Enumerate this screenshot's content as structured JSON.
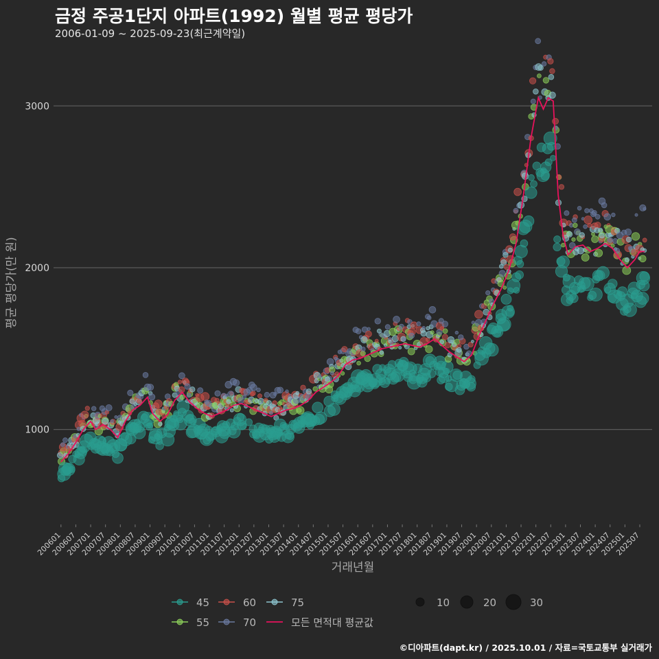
{
  "title": "금정 주공1단지 아파트(1992) 월별 평균 평당가",
  "subtitle": "2006-01-09 ~ 2025-09-23(최근계약일)",
  "credit": "©디아파트(dapt.kr) / 2025.10.01 / 자료=국토교통부 실거래가",
  "colors": {
    "background": "#282828",
    "grid": "#5a5a5a",
    "avg_line": "#e8125c",
    "area_45": "#2a9d8f",
    "area_55": "#8ccf5a",
    "area_60": "#c9504a",
    "area_70": "#6a7aa0",
    "area_75": "#8ec6d0"
  },
  "chart_data": {
    "type": "scatter",
    "xlabel": "거래년월",
    "ylabel": "평균 평당가(만 원)",
    "ylim": [
      430,
      3400
    ],
    "xlim": [
      "2005-10",
      "2025-12"
    ],
    "y_ticks": [
      1000,
      2000,
      3000
    ],
    "x_ticks": [
      "200601",
      "200607",
      "200701",
      "200707",
      "200801",
      "200807",
      "200901",
      "200907",
      "201001",
      "201007",
      "201101",
      "201107",
      "201201",
      "201207",
      "201301",
      "201307",
      "201401",
      "201407",
      "201501",
      "201507",
      "201601",
      "201607",
      "201701",
      "201707",
      "201801",
      "201807",
      "201901",
      "201907",
      "202001",
      "202007",
      "202101",
      "202107",
      "202201",
      "202207",
      "202301",
      "202307",
      "202401",
      "202407",
      "202501",
      "202507"
    ],
    "legend": {
      "area_entries": [
        {
          "label": "45",
          "color": "#2a9d8f"
        },
        {
          "label": "60",
          "color": "#c9504a"
        },
        {
          "label": "75",
          "color": "#8ec6d0"
        },
        {
          "label": "55",
          "color": "#8ccf5a"
        },
        {
          "label": "70",
          "color": "#6a7aa0"
        }
      ],
      "line_entry": {
        "label": "모든 면적대 평균값",
        "color": "#e8125c"
      },
      "size_entries": [
        10,
        20,
        30
      ]
    },
    "avg_line": [
      [
        "2006-01",
        800
      ],
      [
        "2006-04",
        850
      ],
      [
        "2006-07",
        920
      ],
      [
        "2006-10",
        1000
      ],
      [
        "2007-01",
        1050
      ],
      [
        "2007-03",
        1000
      ],
      [
        "2007-06",
        1030
      ],
      [
        "2007-09",
        1000
      ],
      [
        "2007-12",
        950
      ],
      [
        "2008-03",
        1050
      ],
      [
        "2008-06",
        1120
      ],
      [
        "2008-09",
        1150
      ],
      [
        "2008-12",
        1200
      ],
      [
        "2009-02",
        1100
      ],
      [
        "2009-05",
        1050
      ],
      [
        "2009-08",
        1090
      ],
      [
        "2009-11",
        1180
      ],
      [
        "2010-02",
        1230
      ],
      [
        "2010-05",
        1170
      ],
      [
        "2010-08",
        1130
      ],
      [
        "2010-11",
        1100
      ],
      [
        "2011-02",
        1080
      ],
      [
        "2011-05",
        1100
      ],
      [
        "2011-08",
        1120
      ],
      [
        "2011-11",
        1150
      ],
      [
        "2012-02",
        1160
      ],
      [
        "2012-05",
        1140
      ],
      [
        "2012-08",
        1120
      ],
      [
        "2012-11",
        1100
      ],
      [
        "2013-02",
        1080
      ],
      [
        "2013-05",
        1100
      ],
      [
        "2013-08",
        1120
      ],
      [
        "2013-11",
        1130
      ],
      [
        "2014-02",
        1150
      ],
      [
        "2014-05",
        1180
      ],
      [
        "2014-08",
        1230
      ],
      [
        "2014-11",
        1260
      ],
      [
        "2015-02",
        1290
      ],
      [
        "2015-05",
        1330
      ],
      [
        "2015-08",
        1400
      ],
      [
        "2015-11",
        1430
      ],
      [
        "2016-02",
        1440
      ],
      [
        "2016-05",
        1460
      ],
      [
        "2016-08",
        1480
      ],
      [
        "2016-11",
        1500
      ],
      [
        "2017-02",
        1510
      ],
      [
        "2017-05",
        1520
      ],
      [
        "2017-08",
        1530
      ],
      [
        "2017-11",
        1520
      ],
      [
        "2018-02",
        1510
      ],
      [
        "2018-05",
        1530
      ],
      [
        "2018-08",
        1560
      ],
      [
        "2018-11",
        1520
      ],
      [
        "2019-02",
        1480
      ],
      [
        "2019-05",
        1450
      ],
      [
        "2019-08",
        1420
      ],
      [
        "2019-11",
        1460
      ],
      [
        "2020-02",
        1580
      ],
      [
        "2020-05",
        1680
      ],
      [
        "2020-08",
        1780
      ],
      [
        "2020-11",
        1870
      ],
      [
        "2021-02",
        1980
      ],
      [
        "2021-05",
        2150
      ],
      [
        "2021-08",
        2450
      ],
      [
        "2021-11",
        2800
      ],
      [
        "2022-02",
        3050
      ],
      [
        "2022-04",
        2980
      ],
      [
        "2022-06",
        3050
      ],
      [
        "2022-08",
        3030
      ],
      [
        "2022-10",
        2450
      ],
      [
        "2022-12",
        2200
      ],
      [
        "2023-02",
        2080
      ],
      [
        "2023-05",
        2130
      ],
      [
        "2023-08",
        2140
      ],
      [
        "2023-11",
        2100
      ],
      [
        "2024-02",
        2120
      ],
      [
        "2024-05",
        2150
      ],
      [
        "2024-08",
        2120
      ],
      [
        "2024-11",
        2050
      ],
      [
        "2025-02",
        2000
      ],
      [
        "2025-05",
        2050
      ],
      [
        "2025-07",
        2100
      ],
      [
        "2025-09",
        2100
      ]
    ]
  }
}
